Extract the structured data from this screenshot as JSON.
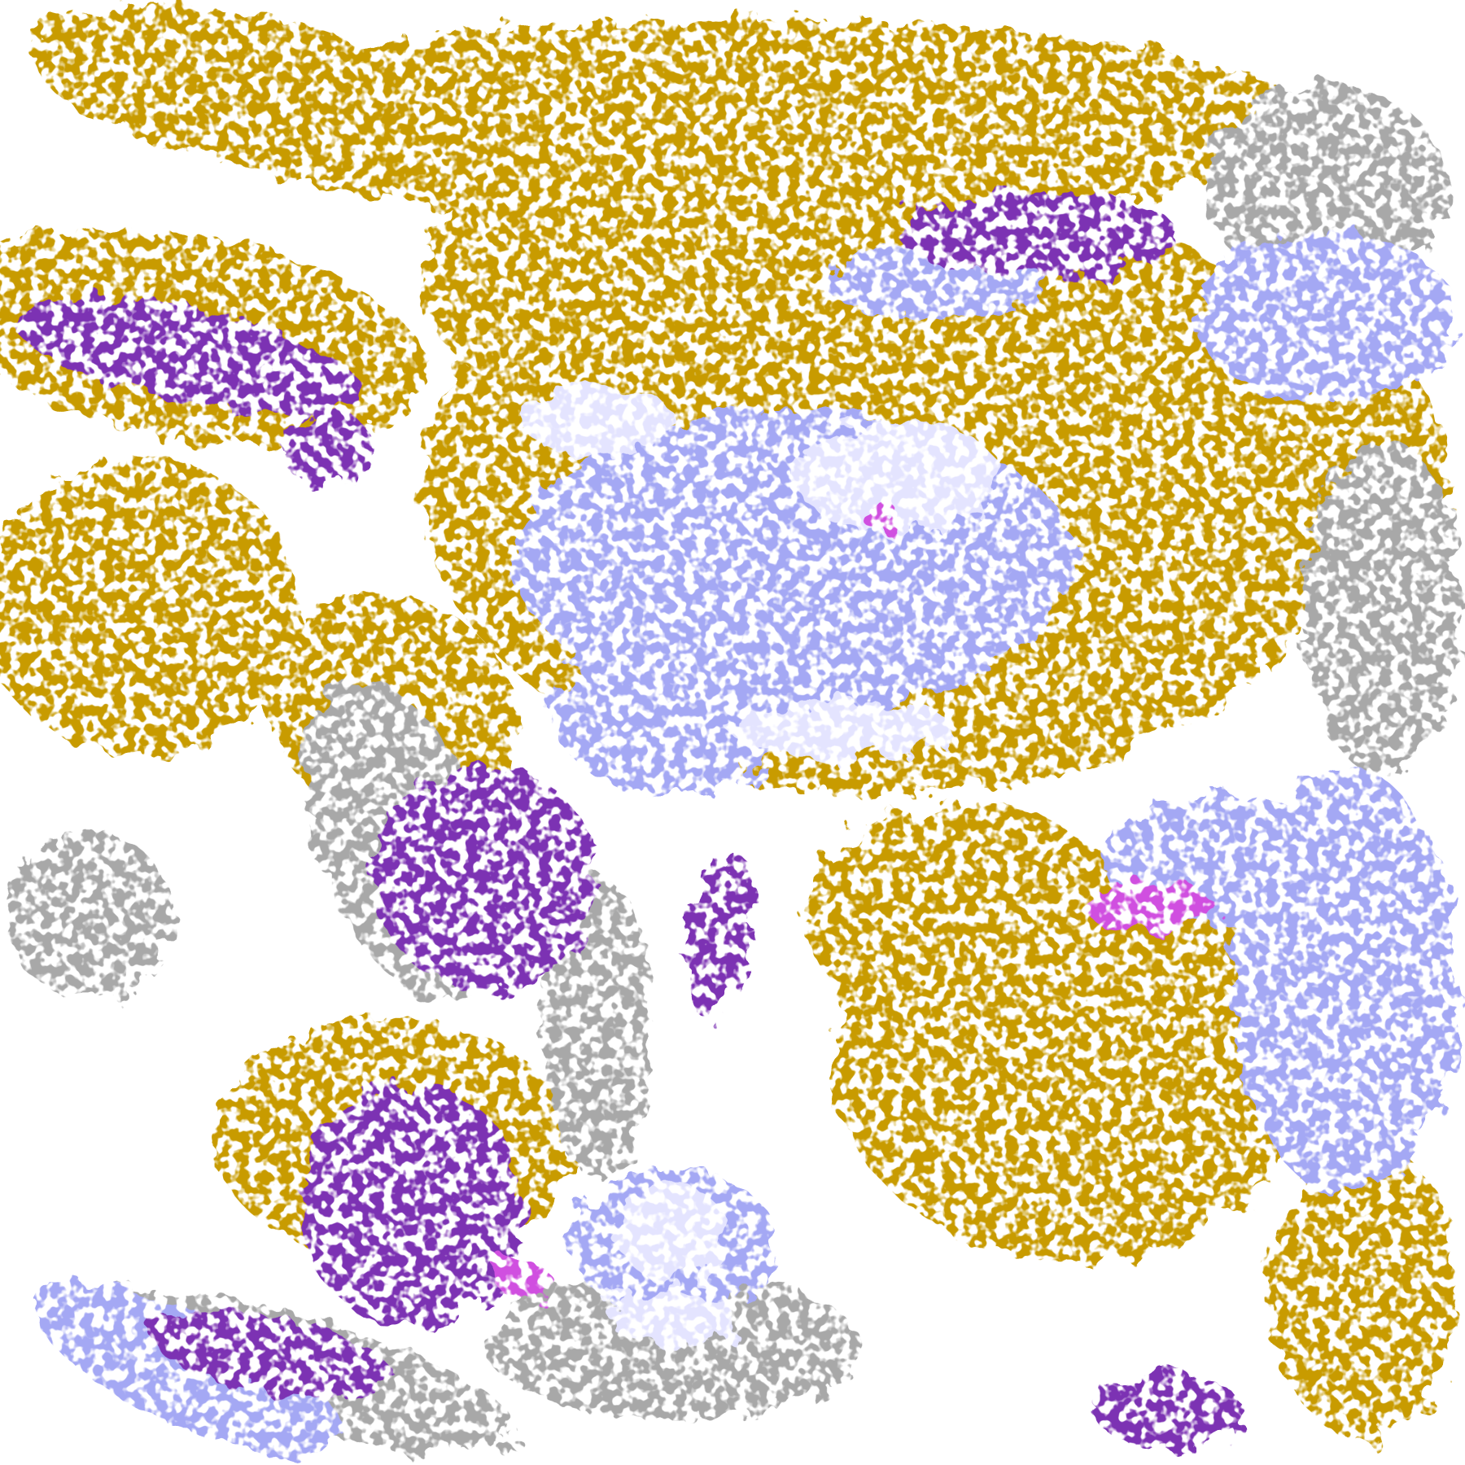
{
  "image": {
    "kind": "false-color satellite cloud classification imagery",
    "palette": {
      "background": "#ffffff",
      "gold": "#c89b00",
      "purple": "#7b33b3",
      "magenta": "#d050e0",
      "lavender": "#a4a8f4",
      "pale_lavender": "#e4e4ff",
      "gray": "#a8a8a8"
    }
  }
}
